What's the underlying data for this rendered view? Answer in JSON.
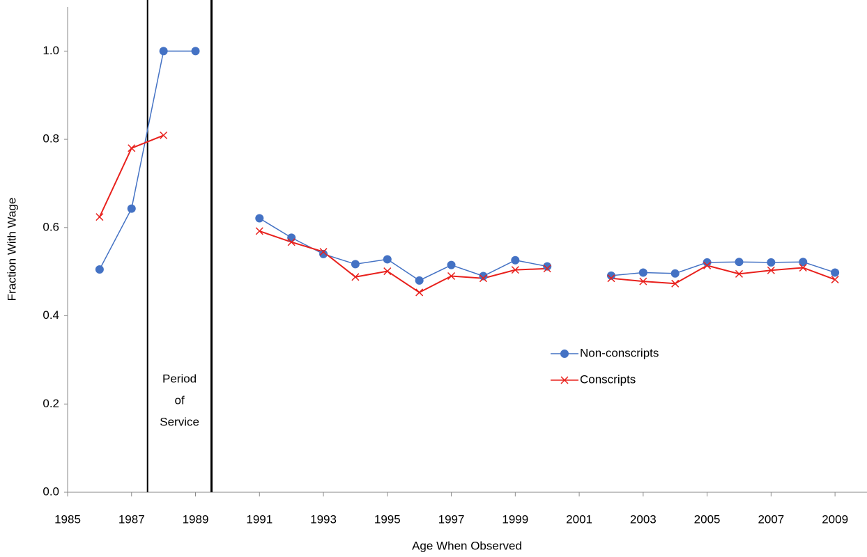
{
  "chart_data": {
    "type": "line",
    "x_label": "Age When Observed",
    "y_label": "Fraction With Wage",
    "x": [
      1986,
      1987,
      1988,
      1989,
      1990,
      1991,
      1992,
      1993,
      1994,
      1995,
      1996,
      1997,
      1998,
      1999,
      2000,
      2001,
      2002,
      2003,
      2004,
      2005,
      2006,
      2007,
      2008,
      2009
    ],
    "series": [
      {
        "name": "Non-conscripts",
        "color": "#4472c4",
        "marker": "circle",
        "values": [
          0.505,
          0.643,
          1.0,
          1.0,
          null,
          0.621,
          0.577,
          0.54,
          0.517,
          0.528,
          0.48,
          0.515,
          0.49,
          0.526,
          0.512,
          null,
          0.491,
          0.498,
          0.496,
          0.521,
          0.522,
          0.521,
          0.522,
          0.498
        ]
      },
      {
        "name": "Conscripts",
        "color": "#e8201c",
        "marker": "x",
        "values": [
          0.624,
          0.78,
          0.809,
          null,
          null,
          0.592,
          0.567,
          0.545,
          0.488,
          0.501,
          0.453,
          0.49,
          0.485,
          0.504,
          0.507,
          null,
          0.485,
          0.478,
          0.473,
          0.514,
          0.495,
          0.503,
          0.509,
          0.482
        ]
      }
    ],
    "xlim": [
      1985,
      2010
    ],
    "xticks": [
      1985,
      1987,
      1989,
      1991,
      1993,
      1995,
      1997,
      1999,
      2001,
      2003,
      2005,
      2007,
      2009
    ],
    "ylim": [
      0,
      1.1
    ],
    "yticks": [
      {
        "value": 0,
        "label": "0.0"
      },
      0.2,
      0.4,
      0.6,
      0.8,
      {
        "value": 1,
        "label": "1.0"
      }
    ],
    "vlines": [
      1987.5,
      1989.5
    ],
    "annotation": [
      "Period",
      "of",
      "Service"
    ],
    "legend": "center-right",
    "grid": false
  }
}
